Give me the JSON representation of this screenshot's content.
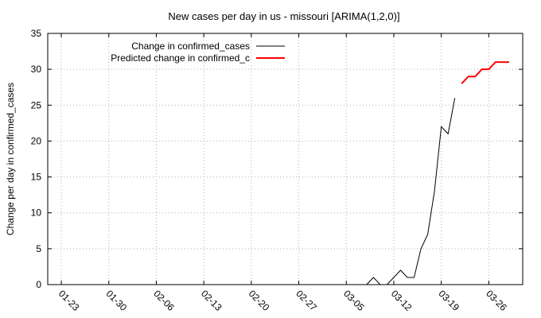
{
  "chart_data": {
    "type": "line",
    "title": "New cases per day in us - missouri [ARIMA(1,2,0)]",
    "xlabel": "",
    "ylabel": "Change per day in confirmed_cases",
    "ylim": [
      0,
      35
    ],
    "yticks": [
      0,
      5,
      10,
      15,
      20,
      25,
      30,
      35
    ],
    "xlim": [
      "2020-01-21",
      "2020-03-31"
    ],
    "xticks": [
      "2020-01-23",
      "2020-01-30",
      "2020-02-06",
      "2020-02-13",
      "2020-02-20",
      "2020-02-27",
      "2020-03-05",
      "2020-03-12",
      "2020-03-19",
      "2020-03-26"
    ],
    "xtick_labels": [
      "01-23",
      "01-30",
      "02-06",
      "02-13",
      "02-20",
      "02-27",
      "03-05",
      "03-12",
      "03-19",
      "03-26"
    ],
    "grid": true,
    "legend_position": "top-left",
    "series": [
      {
        "name": "Change in confirmed_cases",
        "color": "#000000",
        "x": [
          "2020-03-08",
          "2020-03-09",
          "2020-03-10",
          "2020-03-11",
          "2020-03-12",
          "2020-03-13",
          "2020-03-14",
          "2020-03-15",
          "2020-03-16",
          "2020-03-17",
          "2020-03-18",
          "2020-03-19",
          "2020-03-20",
          "2020-03-21"
        ],
        "values": [
          0,
          1,
          0,
          0,
          1,
          2,
          1,
          1,
          5,
          7,
          13,
          22,
          21,
          26
        ]
      },
      {
        "name": "Predicted change in confirmed_c",
        "color": "#ff0000",
        "x": [
          "2020-03-22",
          "2020-03-23",
          "2020-03-24",
          "2020-03-25",
          "2020-03-26",
          "2020-03-27",
          "2020-03-28",
          "2020-03-29"
        ],
        "values": [
          28,
          29,
          29,
          30,
          30,
          31,
          31,
          31
        ]
      }
    ]
  }
}
